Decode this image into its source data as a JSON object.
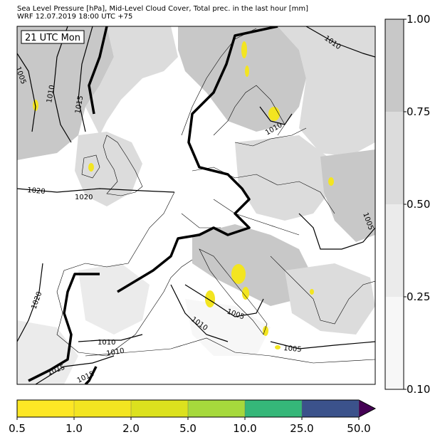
{
  "header": {
    "title_line1": "Sea Level Pressure [hPa], Mid-Level Cloud Cover, Total prec. in the last hour [mm]",
    "title_line2": "WRF 12.07.2019 18:00 UTC +75"
  },
  "map": {
    "valid_time_label": "21 UTC Mon",
    "isobar_labels": [
      "1005",
      "1010",
      "1015",
      "1020",
      "1010",
      "1010",
      "1020",
      "1020",
      "1010",
      "1005",
      "1010",
      "1015",
      "1015",
      "1005",
      "1005",
      "1010"
    ]
  },
  "cloud_colorbar": {
    "ticks": [
      "1.00",
      "0.75",
      "0.50",
      "0.25",
      "0.10"
    ],
    "colors": [
      "#c8c8c8",
      "#dcdcdc",
      "#ebebeb",
      "#f7f7f7"
    ]
  },
  "precip_colorbar": {
    "ticks": [
      "0.5",
      "1.0",
      "2.0",
      "5.0",
      "10.0",
      "25.0",
      "50.0"
    ],
    "colors": [
      "#fde725",
      "#f3e521",
      "#dce11e",
      "#a6d93c",
      "#35b779",
      "#3b528b",
      "#440154"
    ]
  }
}
